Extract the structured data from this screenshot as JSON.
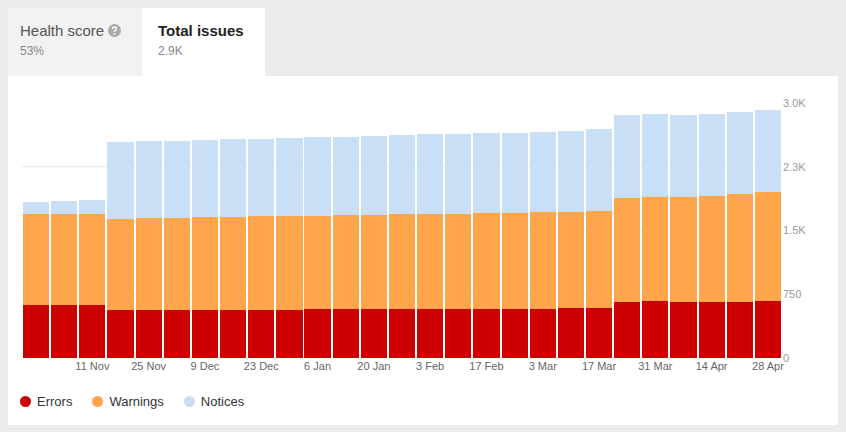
{
  "tabs": [
    {
      "label": "Health score",
      "value": "53%"
    },
    {
      "label": "Total issues",
      "value": "2.9K",
      "active": true
    }
  ],
  "chart_data": {
    "type": "bar",
    "stacked": true,
    "grid": true,
    "categories": [
      null,
      null,
      "11 Nov",
      null,
      "25 Nov",
      null,
      "9 Dec",
      null,
      "23 Dec",
      null,
      "6 Jan",
      null,
      "20 Jan",
      null,
      "3 Feb",
      null,
      "17 Feb",
      null,
      "3 Mar",
      null,
      "17 Mar",
      null,
      "31 Mar",
      null,
      "14 Apr",
      null,
      "28 Apr"
    ],
    "series": [
      {
        "name": "Errors",
        "color": "#cc0000",
        "values": [
          620,
          625,
          625,
          565,
          565,
          565,
          565,
          568,
          570,
          570,
          572,
          575,
          578,
          580,
          580,
          582,
          582,
          580,
          582,
          585,
          590,
          660,
          665,
          660,
          660,
          662,
          665
        ]
      },
      {
        "name": "Warnings",
        "color": "#ffa64d",
        "values": [
          1070,
          1070,
          1075,
          1075,
          1080,
          1085,
          1090,
          1092,
          1095,
          1100,
          1103,
          1105,
          1107,
          1110,
          1115,
          1118,
          1123,
          1130,
          1133,
          1135,
          1145,
          1225,
          1225,
          1240,
          1250,
          1273,
          1290
        ]
      },
      {
        "name": "Notices",
        "color": "#c9dff5",
        "values": [
          150,
          157,
          155,
          905,
          905,
          905,
          910,
          915,
          915,
          920,
          920,
          925,
          930,
          930,
          935,
          940,
          940,
          940,
          945,
          950,
          960,
          975,
          975,
          960,
          955,
          960,
          965
        ]
      }
    ],
    "ylim": [
      0,
      3000
    ],
    "yticks": [
      0,
      750,
      {
        "value": 1500,
        "label": "1.5K"
      },
      {
        "value": 2250,
        "label": "2.3K"
      },
      {
        "value": 3000,
        "label": "3.0K"
      }
    ]
  }
}
